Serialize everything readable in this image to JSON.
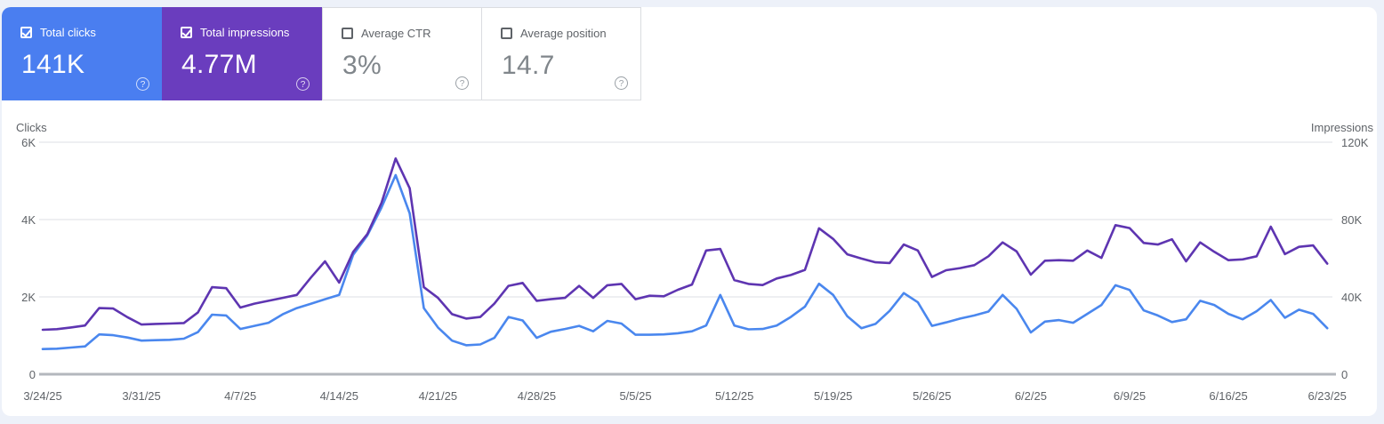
{
  "icons": {
    "help": "?"
  },
  "cards": [
    {
      "label": "Total clicks",
      "value": "141K",
      "checked": true,
      "bg": "#4a7ef0",
      "text_color": "#ffffff"
    },
    {
      "label": "Total impressions",
      "value": "4.77M",
      "checked": true,
      "bg": "#6a3dbe",
      "text_color": "#ffffff"
    },
    {
      "label": "Average CTR",
      "value": "3%",
      "checked": false,
      "bg": "#ffffff",
      "text_color": "#80868b"
    },
    {
      "label": "Average position",
      "value": "14.7",
      "checked": false,
      "bg": "#ffffff",
      "text_color": "#80868b"
    }
  ],
  "chart_data": {
    "type": "line",
    "grid": true,
    "left_axis": {
      "title": "Clicks",
      "ticks": [
        "6K",
        "4K",
        "2K",
        "0"
      ],
      "max": 6000
    },
    "right_axis": {
      "title": "Impressions",
      "ticks": [
        "120K",
        "80K",
        "40K",
        "0"
      ],
      "max": 120000
    },
    "x_tick_labels": [
      "3/24/25",
      "3/31/25",
      "4/7/25",
      "4/14/25",
      "4/21/25",
      "4/28/25",
      "5/5/25",
      "5/12/25",
      "5/19/25",
      "5/26/25",
      "6/2/25",
      "6/9/25",
      "6/16/25",
      "6/23/25"
    ],
    "x_tick_days": [
      0,
      7,
      14,
      21,
      28,
      35,
      42,
      49,
      56,
      63,
      70,
      77,
      84,
      91
    ],
    "date_range": {
      "start": "3/24/25",
      "end": "6/23/25",
      "num_days": 92
    },
    "series": [
      {
        "name": "Total clicks",
        "axis": "left",
        "color": "#4a87ee",
        "values": [
          650,
          660,
          690,
          720,
          1030,
          1010,
          950,
          870,
          880,
          890,
          920,
          1090,
          1540,
          1520,
          1170,
          1250,
          1330,
          1550,
          1710,
          1820,
          1940,
          2050,
          3090,
          3590,
          4310,
          5150,
          4160,
          1710,
          1210,
          870,
          750,
          770,
          940,
          1480,
          1390,
          940,
          1100,
          1170,
          1250,
          1110,
          1380,
          1310,
          1020,
          1020,
          1030,
          1060,
          1110,
          1260,
          2050,
          1260,
          1160,
          1170,
          1260,
          1480,
          1750,
          2340,
          2050,
          1500,
          1190,
          1300,
          1640,
          2100,
          1860,
          1250,
          1340,
          1440,
          1520,
          1620,
          2050,
          1690,
          1080,
          1360,
          1400,
          1330,
          1560,
          1790,
          2300,
          2180,
          1650,
          1520,
          1350,
          1420,
          1900,
          1790,
          1560,
          1420,
          1630,
          1920,
          1460,
          1670,
          1560,
          1190
        ]
      },
      {
        "name": "Total impressions",
        "axis": "right",
        "color": "#5e35b1",
        "values": [
          23000,
          23300,
          24200,
          25200,
          34200,
          34000,
          29500,
          25700,
          26000,
          26200,
          26500,
          32000,
          45000,
          44500,
          34500,
          36500,
          38000,
          39500,
          41000,
          50000,
          58400,
          47400,
          63300,
          72500,
          88600,
          111600,
          96200,
          45000,
          39500,
          31100,
          28800,
          29600,
          36500,
          45700,
          47200,
          38000,
          38800,
          39500,
          45700,
          39500,
          46000,
          46700,
          38800,
          40600,
          40300,
          43700,
          46400,
          64000,
          64800,
          48700,
          46700,
          46100,
          49500,
          51300,
          54000,
          75500,
          70000,
          62000,
          59800,
          57900,
          57500,
          67100,
          64000,
          50300,
          53800,
          54900,
          56400,
          61000,
          68200,
          63500,
          51500,
          58700,
          59000,
          58700,
          64000,
          60200,
          77100,
          75600,
          67900,
          67100,
          69800,
          58400,
          68200,
          63300,
          59000,
          59400,
          61000,
          76300,
          62100,
          65900,
          66600,
          57200
        ]
      }
    ]
  }
}
